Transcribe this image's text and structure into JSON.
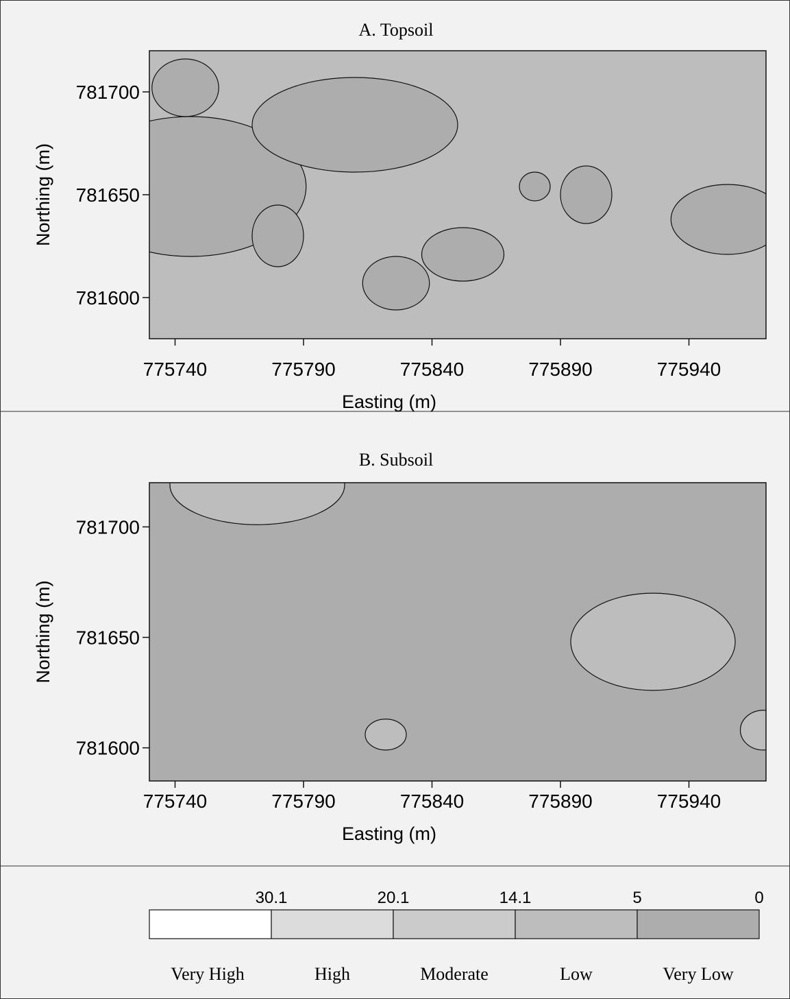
{
  "chart_data": [
    {
      "type": "heatmap",
      "panel": "A",
      "title": "A. Topsoil",
      "xlabel": "Easting (m)",
      "ylabel": "Northing (m)",
      "xlim": [
        775730,
        775970
      ],
      "ylim": [
        781580,
        781720
      ],
      "xticks": [
        775740,
        775790,
        775840,
        775890,
        775940
      ],
      "yticks": [
        781600,
        781650,
        781700
      ],
      "background_class": "Low",
      "zones": [
        {
          "class": "Very Low",
          "cx": 775746,
          "cy": 781654,
          "rx": 45,
          "ry": 34
        },
        {
          "class": "Very Low",
          "cx": 775810,
          "cy": 781684,
          "rx": 40,
          "ry": 23
        },
        {
          "class": "Very Low",
          "cx": 775744,
          "cy": 781702,
          "rx": 13,
          "ry": 14
        },
        {
          "class": "Very Low",
          "cx": 775780,
          "cy": 781630,
          "rx": 10,
          "ry": 15
        },
        {
          "class": "Very Low",
          "cx": 775826,
          "cy": 781607,
          "rx": 13,
          "ry": 13
        },
        {
          "class": "Very Low",
          "cx": 775852,
          "cy": 781621,
          "rx": 16,
          "ry": 13
        },
        {
          "class": "Very Low",
          "cx": 775880,
          "cy": 781654,
          "rx": 6,
          "ry": 7
        },
        {
          "class": "Very Low",
          "cx": 775900,
          "cy": 781650,
          "rx": 10,
          "ry": 14
        },
        {
          "class": "Very Low",
          "cx": 775955,
          "cy": 781638,
          "rx": 22,
          "ry": 17
        }
      ]
    },
    {
      "type": "heatmap",
      "panel": "B",
      "title": "B. Subsoil",
      "xlabel": "Easting (m)",
      "ylabel": "Northing (m)",
      "xlim": [
        775730,
        775970
      ],
      "ylim": [
        781585,
        781720
      ],
      "xticks": [
        775740,
        775790,
        775840,
        775890,
        775940
      ],
      "yticks": [
        781600,
        781650,
        781700
      ],
      "background_class": "Very Low",
      "zones": [
        {
          "class": "Low",
          "cx": 775772,
          "cy": 781719,
          "rx": 34,
          "ry": 18
        },
        {
          "class": "Low",
          "cx": 775926,
          "cy": 781648,
          "rx": 32,
          "ry": 22
        },
        {
          "class": "Low",
          "cx": 775822,
          "cy": 781606,
          "rx": 8,
          "ry": 7
        },
        {
          "class": "Low",
          "cx": 775969,
          "cy": 781608,
          "rx": 9,
          "ry": 9
        }
      ]
    }
  ],
  "legend": {
    "breaks": [
      "30.1",
      "20.1",
      "14.1",
      "5",
      "0"
    ],
    "classes": [
      {
        "label": "Very High",
        "color": "#ffffff"
      },
      {
        "label": "High",
        "color": "#dcdcdc"
      },
      {
        "label": "Moderate",
        "color": "#cbcbcb"
      },
      {
        "label": "Low",
        "color": "#bdbdbd"
      },
      {
        "label": "Very Low",
        "color": "#adadad"
      }
    ]
  }
}
